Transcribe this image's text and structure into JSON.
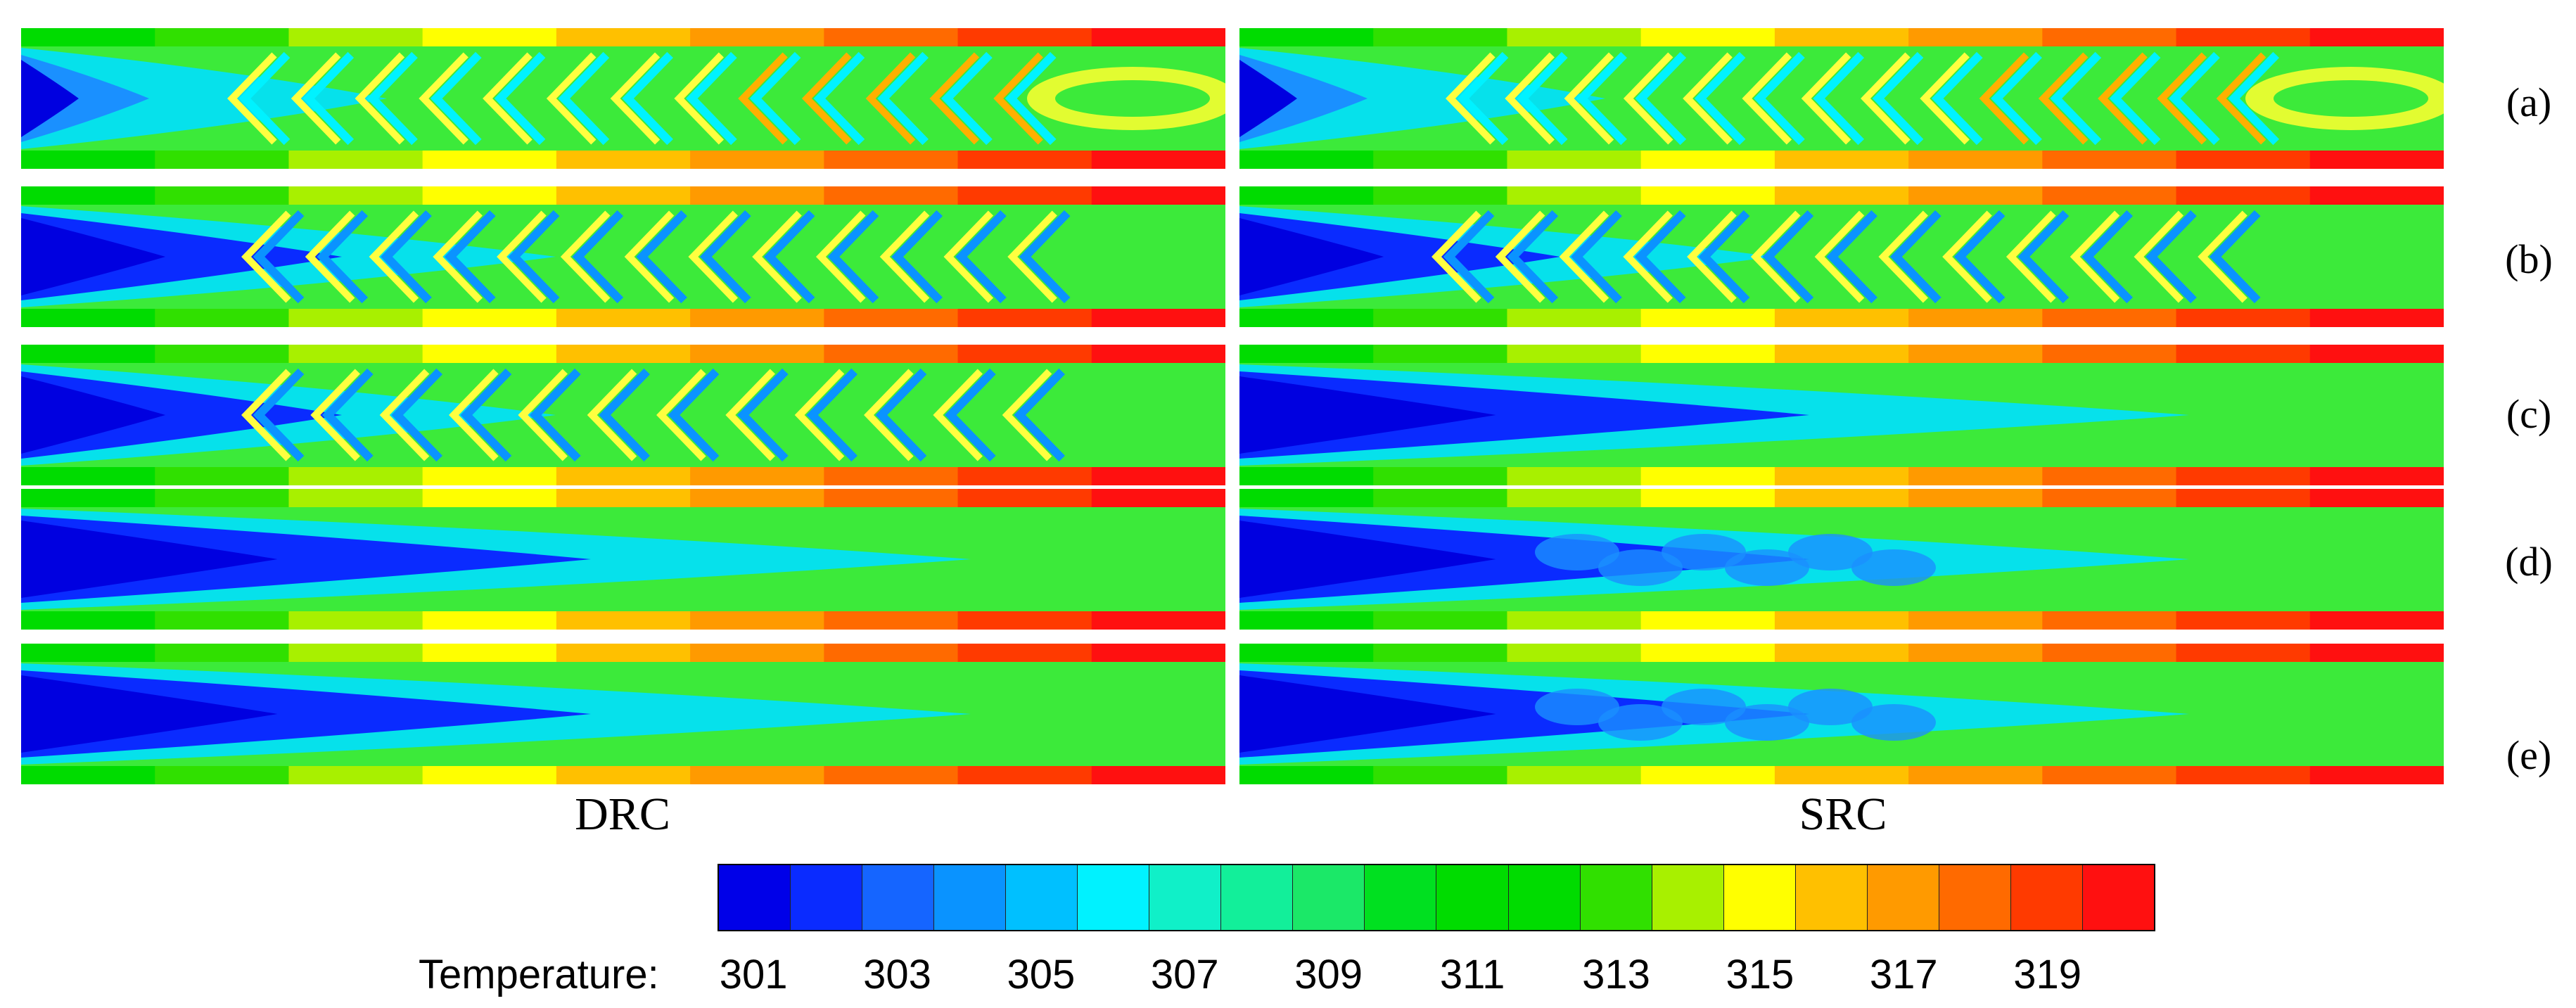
{
  "figure": {
    "column_titles": [
      "DRC",
      "SRC"
    ],
    "row_labels": [
      "(a)",
      "(b)",
      "(c)",
      "(d)",
      "(e)"
    ],
    "colorbar": {
      "title": "Temperature:",
      "tick_labels": [
        "301",
        "303",
        "305",
        "307",
        "309",
        "311",
        "313",
        "315",
        "317",
        "319"
      ],
      "colors": [
        "#0000e8",
        "#0a2bff",
        "#1565ff",
        "#0a93ff",
        "#00c0ff",
        "#00f2ff",
        "#10f0c8",
        "#12ef9a",
        "#1be868",
        "#00e020",
        "#00dc00",
        "#00dc00",
        "#30e000",
        "#a8f000",
        "#ffff00",
        "#ffc000",
        "#ff9a00",
        "#ff6a00",
        "#ff3a00",
        "#ff1010"
      ]
    },
    "panels": [
      {
        "column": "DRC",
        "row": "(a)",
        "chevrons": 13,
        "core": "light"
      },
      {
        "column": "SRC",
        "row": "(a)",
        "chevrons": 14,
        "core": "light"
      },
      {
        "column": "DRC",
        "row": "(b)",
        "chevrons": 13,
        "core": "dark"
      },
      {
        "column": "SRC",
        "row": "(b)",
        "chevrons": 13,
        "core": "dark"
      },
      {
        "column": "DRC",
        "row": "(c)",
        "chevrons": 12,
        "core": "dark"
      },
      {
        "column": "SRC",
        "row": "(c)",
        "chevrons": 0,
        "core": "smooth"
      },
      {
        "column": "DRC",
        "row": "(d)",
        "chevrons": 0,
        "core": "smooth"
      },
      {
        "column": "SRC",
        "row": "(d)",
        "chevrons": 0,
        "core": "patchy"
      },
      {
        "column": "DRC",
        "row": "(e)",
        "chevrons": 0,
        "core": "smooth"
      },
      {
        "column": "SRC",
        "row": "(e)",
        "chevrons": 0,
        "core": "patchy"
      }
    ]
  }
}
